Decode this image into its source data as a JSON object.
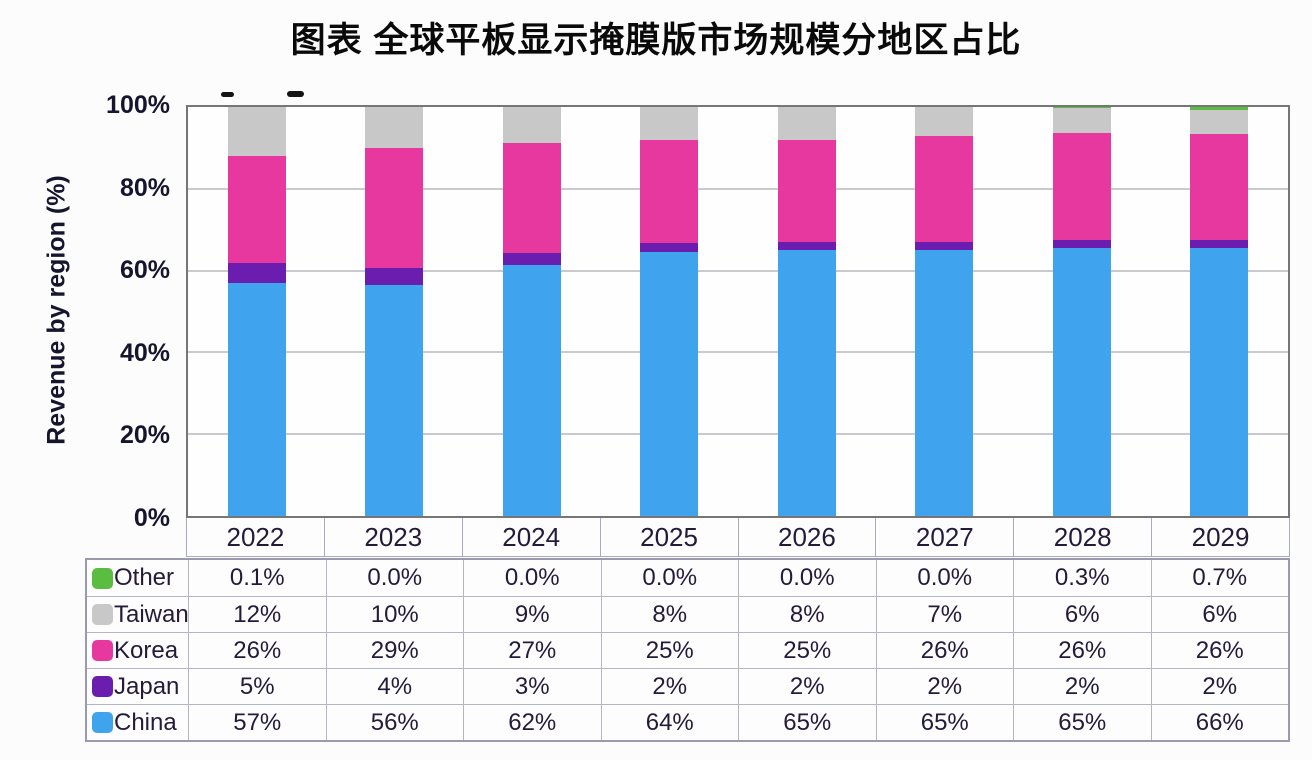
{
  "title": "图表 全球平板显示掩膜版市场规模分地区占比",
  "chart_data": {
    "type": "bar",
    "subtype": "stacked-percentage-column",
    "title": "图表 全球平板显示掩膜版市场规模分地区占比",
    "xlabel": "",
    "ylabel": "Revenue by region (%)",
    "ylim": [
      0,
      100
    ],
    "yticks": [
      "0%",
      "20%",
      "40%",
      "60%",
      "80%",
      "100%"
    ],
    "grid": "horizontal",
    "legend_position": "table-left-column",
    "categories": [
      "2022",
      "2023",
      "2024",
      "2025",
      "2026",
      "2027",
      "2028",
      "2029"
    ],
    "series": [
      {
        "name": "Other",
        "color": "#5abd41",
        "values": [
          0.1,
          0.0,
          0.0,
          0.0,
          0.0,
          0.0,
          0.3,
          0.7
        ],
        "labels": [
          "0.1%",
          "0.0%",
          "0.0%",
          "0.0%",
          "0.0%",
          "0.0%",
          "0.3%",
          "0.7%"
        ]
      },
      {
        "name": "Taiwan",
        "color": "#c8c8c8",
        "values": [
          12,
          10,
          9,
          8,
          8,
          7,
          6,
          6
        ],
        "labels": [
          "12%",
          "10%",
          "9%",
          "8%",
          "8%",
          "7%",
          "6%",
          "6%"
        ]
      },
      {
        "name": "Korea",
        "color": "#e6389e",
        "values": [
          26,
          29,
          27,
          25,
          25,
          26,
          26,
          26
        ],
        "labels": [
          "26%",
          "29%",
          "27%",
          "25%",
          "25%",
          "26%",
          "26%",
          "26%"
        ]
      },
      {
        "name": "Japan",
        "color": "#6a1dae",
        "values": [
          5,
          4,
          3,
          2,
          2,
          2,
          2,
          2
        ],
        "labels": [
          "5%",
          "4%",
          "3%",
          "2%",
          "2%",
          "2%",
          "2%",
          "2%"
        ]
      },
      {
        "name": "China",
        "color": "#3fa3ee",
        "values": [
          57,
          56,
          62,
          64,
          65,
          65,
          65,
          66
        ],
        "labels": [
          "57%",
          "56%",
          "62%",
          "64%",
          "65%",
          "65%",
          "65%",
          "66%"
        ]
      }
    ],
    "stack_order_bottom_to_top": [
      "China",
      "Japan",
      "Korea",
      "Taiwan",
      "Other"
    ]
  }
}
